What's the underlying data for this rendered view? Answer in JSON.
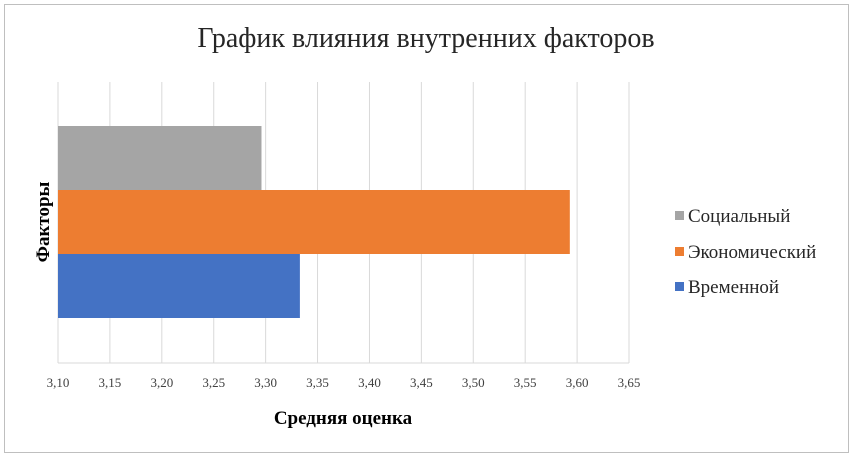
{
  "chart_data": {
    "type": "bar",
    "orientation": "horizontal",
    "title": "График влияния внутренних факторов",
    "xlabel": "Средняя оценка",
    "ylabel": "Факторы",
    "xlim": [
      3.1,
      3.65
    ],
    "x_ticks": [
      "3,10",
      "3,15",
      "3,20",
      "3,25",
      "3,30",
      "3,35",
      "3,40",
      "3,45",
      "3,50",
      "3,55",
      "3,60",
      "3,65"
    ],
    "grid": true,
    "legend_position": "right",
    "series": [
      {
        "name": "Временной",
        "value": 3.333,
        "color": "#4472c4"
      },
      {
        "name": "Экономический",
        "value": 3.593,
        "color": "#ed7d31"
      },
      {
        "name": "Социальный",
        "value": 3.296,
        "color": "#a5a5a5"
      }
    ],
    "legend_order": [
      "Социальный",
      "Экономический",
      "Временной"
    ]
  }
}
